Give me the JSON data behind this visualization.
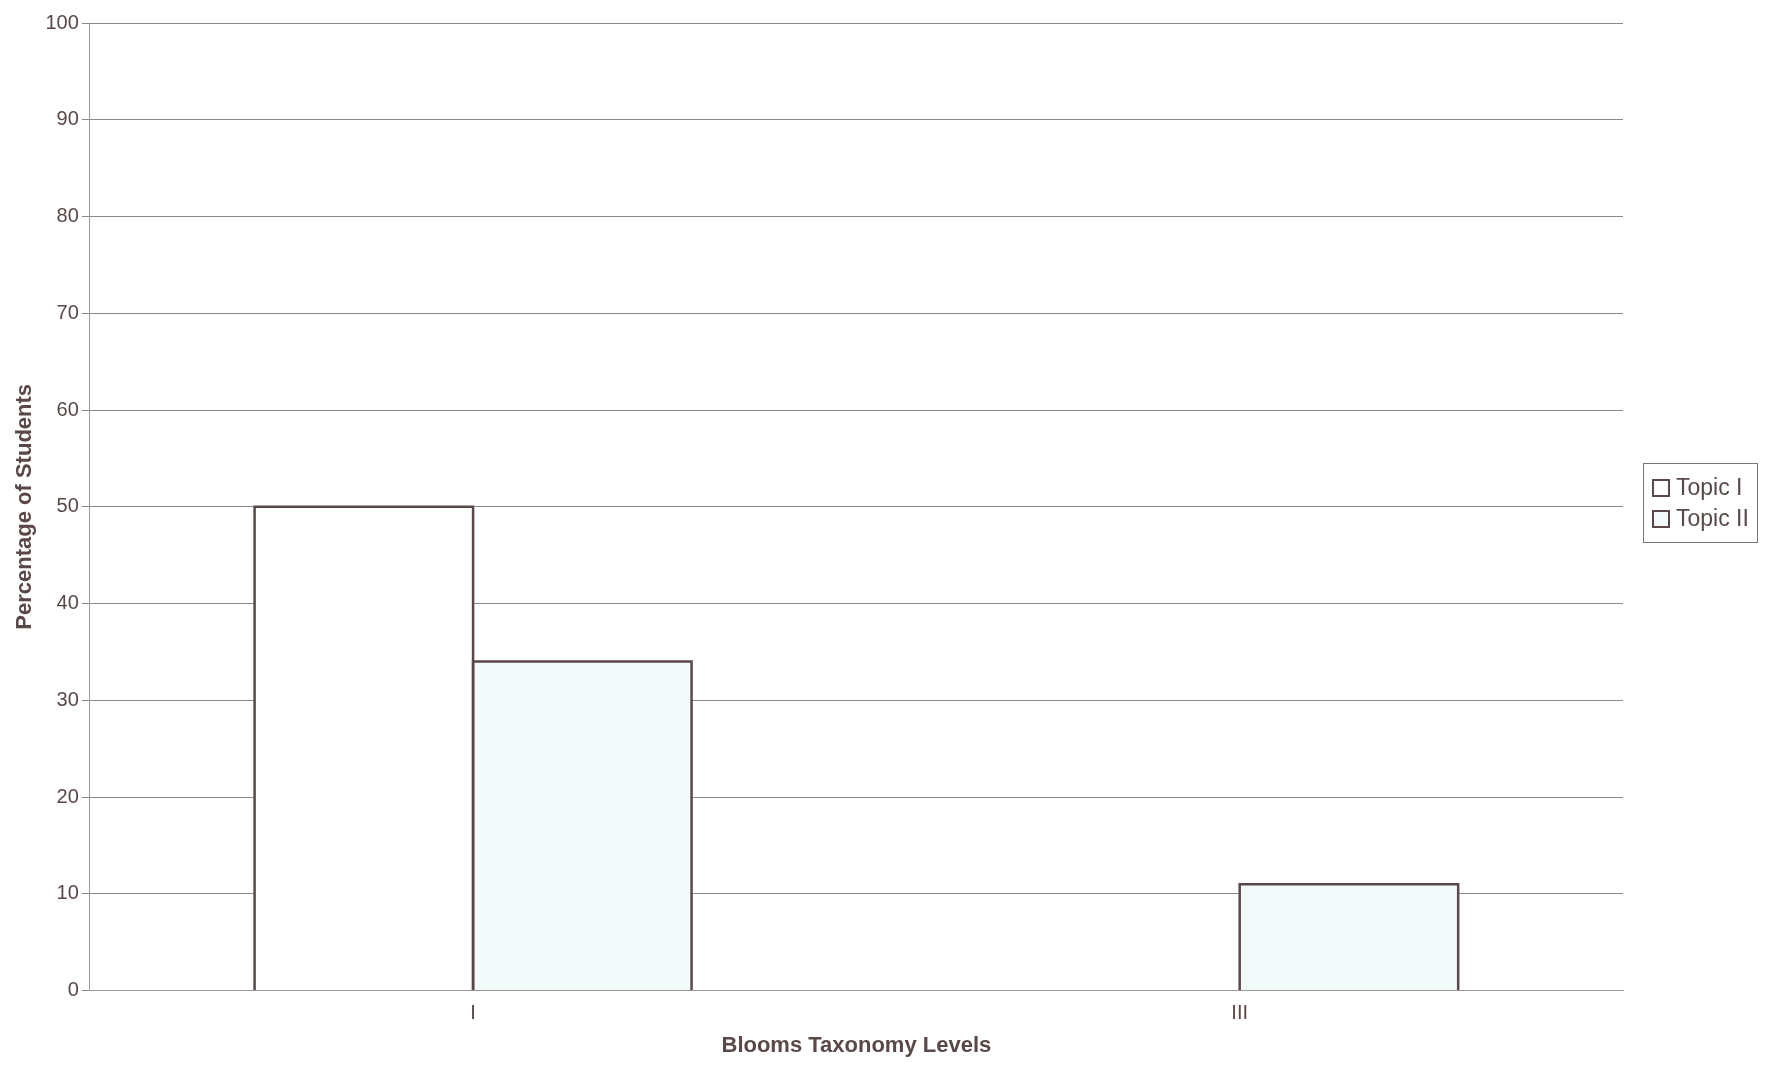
{
  "chart_data": {
    "type": "bar",
    "xlabel": "Blooms Taxonomy Levels",
    "ylabel": "Percentage of Students",
    "categories": [
      "I",
      "III"
    ],
    "series": [
      {
        "name": "Topic I",
        "color": "#ffffff",
        "values": [
          50,
          null
        ]
      },
      {
        "name": "Topic II",
        "color": "#f3fafa",
        "values": [
          34,
          11
        ]
      }
    ],
    "ylim": [
      0,
      100
    ],
    "yticks": [
      0,
      10,
      20,
      30,
      40,
      50,
      60,
      70,
      80,
      90,
      100
    ],
    "grid": "y",
    "legend": "right"
  }
}
